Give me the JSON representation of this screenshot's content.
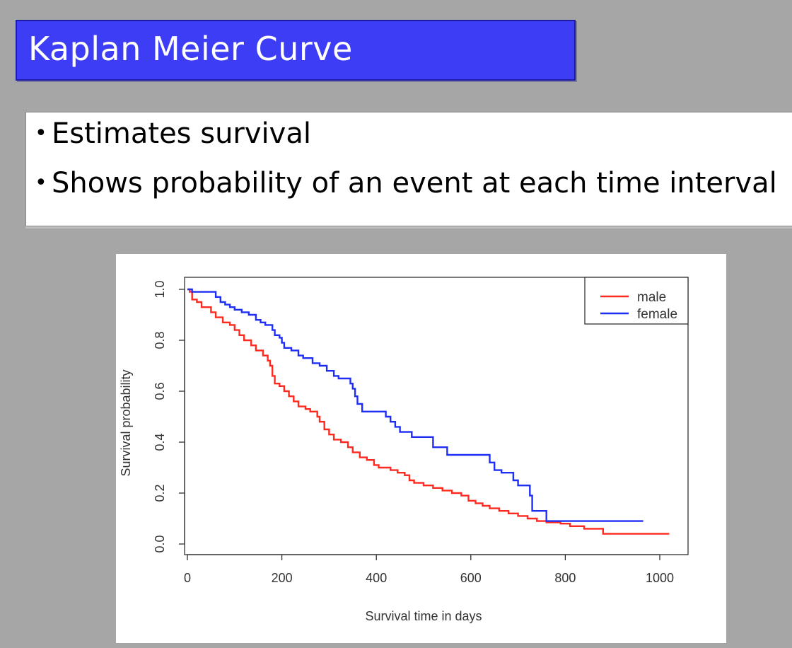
{
  "slide": {
    "title": "Kaplan Meier Curve",
    "bullet_symbol": "•",
    "bullets": [
      "Estimates survival",
      "Shows probability of an event at each time interval"
    ],
    "colors": {
      "background": "#a6a6a6",
      "title_bar": "#3d3df5",
      "title_text": "#ffffff"
    }
  },
  "chart_data": {
    "type": "line",
    "step": true,
    "title": "",
    "xlabel": "Survival time in days",
    "ylabel": "Survival probability",
    "xlim": [
      0,
      1000
    ],
    "ylim": [
      0,
      1
    ],
    "xticks": [
      "0",
      "200",
      "400",
      "600",
      "800",
      "1000"
    ],
    "yticks": [
      "0.0",
      "0.2",
      "0.4",
      "0.6",
      "0.8",
      "1.0"
    ],
    "grid": false,
    "legend_position": "top-right",
    "series": [
      {
        "name": "male",
        "color": "#ff2a1f",
        "points": [
          [
            0,
            1.0
          ],
          [
            5,
            0.99
          ],
          [
            10,
            0.96
          ],
          [
            20,
            0.95
          ],
          [
            30,
            0.93
          ],
          [
            50,
            0.91
          ],
          [
            60,
            0.89
          ],
          [
            75,
            0.87
          ],
          [
            90,
            0.86
          ],
          [
            100,
            0.84
          ],
          [
            110,
            0.82
          ],
          [
            120,
            0.8
          ],
          [
            135,
            0.78
          ],
          [
            145,
            0.76
          ],
          [
            160,
            0.74
          ],
          [
            170,
            0.72
          ],
          [
            175,
            0.7
          ],
          [
            180,
            0.66
          ],
          [
            185,
            0.63
          ],
          [
            195,
            0.62
          ],
          [
            205,
            0.6
          ],
          [
            215,
            0.58
          ],
          [
            225,
            0.56
          ],
          [
            235,
            0.54
          ],
          [
            250,
            0.53
          ],
          [
            260,
            0.52
          ],
          [
            275,
            0.5
          ],
          [
            280,
            0.48
          ],
          [
            290,
            0.45
          ],
          [
            300,
            0.43
          ],
          [
            310,
            0.41
          ],
          [
            325,
            0.4
          ],
          [
            340,
            0.38
          ],
          [
            350,
            0.36
          ],
          [
            365,
            0.34
          ],
          [
            380,
            0.33
          ],
          [
            395,
            0.31
          ],
          [
            405,
            0.3
          ],
          [
            430,
            0.29
          ],
          [
            445,
            0.28
          ],
          [
            460,
            0.27
          ],
          [
            470,
            0.25
          ],
          [
            480,
            0.24
          ],
          [
            500,
            0.23
          ],
          [
            520,
            0.22
          ],
          [
            540,
            0.21
          ],
          [
            560,
            0.2
          ],
          [
            580,
            0.19
          ],
          [
            595,
            0.17
          ],
          [
            610,
            0.16
          ],
          [
            625,
            0.15
          ],
          [
            640,
            0.14
          ],
          [
            660,
            0.13
          ],
          [
            680,
            0.12
          ],
          [
            700,
            0.11
          ],
          [
            720,
            0.1
          ],
          [
            740,
            0.09
          ],
          [
            760,
            0.085
          ],
          [
            790,
            0.08
          ],
          [
            810,
            0.07
          ],
          [
            840,
            0.06
          ],
          [
            880,
            0.04
          ],
          [
            1020,
            0.04
          ]
        ]
      },
      {
        "name": "female",
        "color": "#1f2ef5",
        "points": [
          [
            0,
            1.0
          ],
          [
            10,
            0.99
          ],
          [
            60,
            0.97
          ],
          [
            70,
            0.95
          ],
          [
            80,
            0.94
          ],
          [
            90,
            0.93
          ],
          [
            100,
            0.92
          ],
          [
            115,
            0.91
          ],
          [
            130,
            0.9
          ],
          [
            145,
            0.88
          ],
          [
            155,
            0.87
          ],
          [
            165,
            0.86
          ],
          [
            180,
            0.84
          ],
          [
            185,
            0.82
          ],
          [
            195,
            0.81
          ],
          [
            200,
            0.79
          ],
          [
            205,
            0.77
          ],
          [
            220,
            0.76
          ],
          [
            235,
            0.74
          ],
          [
            245,
            0.73
          ],
          [
            265,
            0.71
          ],
          [
            280,
            0.7
          ],
          [
            295,
            0.68
          ],
          [
            310,
            0.66
          ],
          [
            320,
            0.65
          ],
          [
            345,
            0.63
          ],
          [
            350,
            0.61
          ],
          [
            355,
            0.58
          ],
          [
            360,
            0.55
          ],
          [
            370,
            0.52
          ],
          [
            420,
            0.5
          ],
          [
            430,
            0.48
          ],
          [
            440,
            0.46
          ],
          [
            450,
            0.44
          ],
          [
            475,
            0.42
          ],
          [
            520,
            0.38
          ],
          [
            550,
            0.35
          ],
          [
            640,
            0.32
          ],
          [
            650,
            0.29
          ],
          [
            665,
            0.28
          ],
          [
            690,
            0.25
          ],
          [
            700,
            0.23
          ],
          [
            725,
            0.19
          ],
          [
            730,
            0.13
          ],
          [
            760,
            0.09
          ],
          [
            965,
            0.09
          ]
        ]
      }
    ]
  }
}
